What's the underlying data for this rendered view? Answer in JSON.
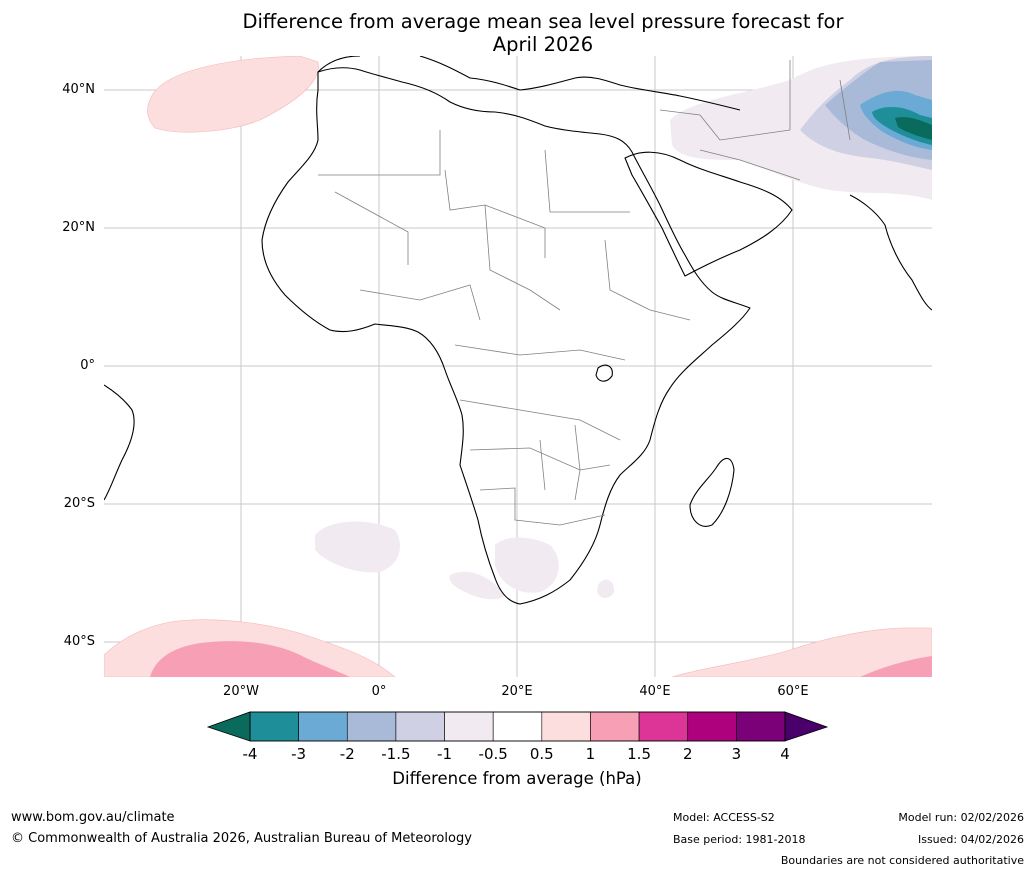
{
  "title_line1": "Difference from average mean sea level pressure forecast for",
  "title_line2": "April 2026",
  "map": {
    "lat_labels": [
      "40°N",
      "20°N",
      "0°",
      "20°S",
      "40°S"
    ],
    "lon_labels": [
      "20°W",
      "0°",
      "20°E",
      "40°E",
      "60°E"
    ]
  },
  "colorbar": {
    "ticks": [
      "-4",
      "-3",
      "-2",
      "-1.5",
      "-1",
      "-0.5",
      "0.5",
      "1",
      "1.5",
      "2",
      "3",
      "4"
    ],
    "colors": [
      "#1e8f99",
      "#6aaad4",
      "#a8bad8",
      "#d0d0e4",
      "#f1ebf1",
      "#ffffff",
      "#fddede",
      "#f79fb5",
      "#dd3497",
      "#ae017e",
      "#7a0177"
    ],
    "low_extend_color": "#0a6b5c",
    "high_extend_color": "#49006a",
    "label": "Difference from average (hPa)"
  },
  "footer": {
    "url": "www.bom.gov.au/climate",
    "copyright": "© Commonwealth of Australia 2026, Australian Bureau of Meteorology",
    "model": "Model: ACCESS-S2",
    "base_period": "Base period: 1981-2018",
    "model_run": "Model run: 02/02/2026",
    "issued": "Issued: 04/02/2026",
    "disclaimer": "Boundaries are not considered authoritative"
  }
}
